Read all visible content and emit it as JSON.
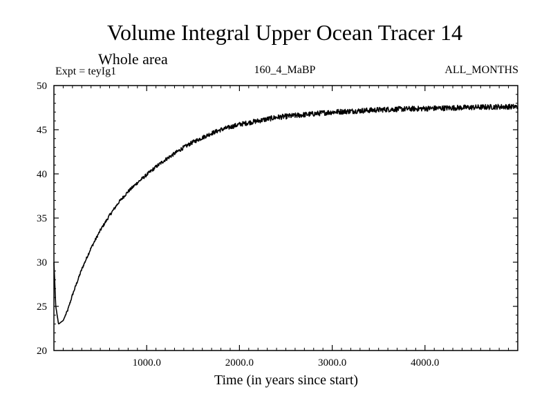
{
  "chart_data": {
    "type": "line",
    "title": "Volume Integral Upper Ocean Tracer 14",
    "subtitle": "Whole area",
    "expt_label": "Expt = teyIg1",
    "center_label": "160_4_MaBP",
    "right_label": "ALL_MONTHS",
    "xlabel": "Time (in years since start)",
    "ylabel": "",
    "xlim": [
      0,
      5000
    ],
    "ylim": [
      20,
      50
    ],
    "x_ticks": [
      1000,
      2000,
      3000,
      4000
    ],
    "x_tick_labels": [
      "1000.0",
      "2000.0",
      "3000.0",
      "4000.0"
    ],
    "y_ticks": [
      20,
      25,
      30,
      35,
      40,
      45,
      50
    ],
    "y_tick_labels": [
      "20",
      "25",
      "30",
      "35",
      "40",
      "45",
      "50"
    ],
    "grid": false,
    "series": [
      {
        "name": "Tracer 14",
        "color": "#000000",
        "x": [
          0,
          20,
          50,
          100,
          150,
          200,
          300,
          400,
          500,
          600,
          700,
          800,
          900,
          1000,
          1100,
          1200,
          1300,
          1400,
          1500,
          1600,
          1700,
          1800,
          1900,
          2000,
          2100,
          2200,
          2300,
          2400,
          2500,
          2600,
          2700,
          2800,
          2900,
          3000,
          3200,
          3400,
          3600,
          3800,
          4000,
          4200,
          4400,
          4600,
          4800,
          5000
        ],
        "y": [
          30,
          25,
          23,
          23.4,
          24.6,
          26.3,
          29.2,
          31.6,
          33.6,
          35.3,
          36.8,
          38,
          39,
          39.9,
          40.8,
          41.6,
          42.3,
          43,
          43.6,
          44.1,
          44.6,
          45,
          45.3,
          45.6,
          45.8,
          46,
          46.2,
          46.4,
          46.5,
          46.6,
          46.7,
          46.8,
          46.9,
          47,
          47.1,
          47.2,
          47.3,
          47.35,
          47.4,
          47.45,
          47.5,
          47.55,
          47.6,
          47.6
        ]
      }
    ]
  }
}
